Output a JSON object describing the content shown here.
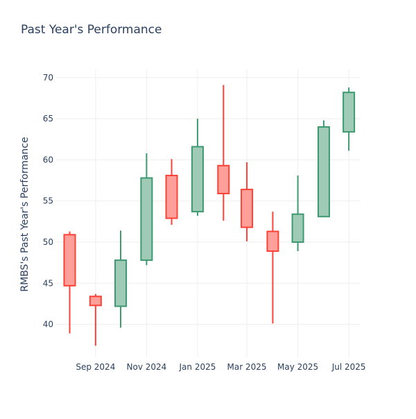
{
  "chart_data": {
    "type": "candlestick",
    "title": "Past Year's Performance",
    "xlabel": "",
    "ylabel": "RMBS's Past Year's Performance",
    "ylim": [
      36,
      71
    ],
    "yticks": [
      40,
      45,
      50,
      55,
      60,
      65,
      70
    ],
    "xlim": [
      "2024-07-15",
      "2025-07-15"
    ],
    "xticks": [
      {
        "date": "2024-09-01",
        "label": "Sep 2024"
      },
      {
        "date": "2024-11-01",
        "label": "Nov 2024"
      },
      {
        "date": "2025-01-01",
        "label": "Jan 2025"
      },
      {
        "date": "2025-03-01",
        "label": "Mar 2025"
      },
      {
        "date": "2025-05-01",
        "label": "May 2025"
      },
      {
        "date": "2025-07-01",
        "label": "Jul 2025"
      }
    ],
    "grid": true,
    "legend": "none",
    "colors": {
      "increasing_line": "#3d9970",
      "increasing_fill": "#9ecab6",
      "decreasing_line": "#ff4136",
      "decreasing_fill": "#ff9f9a",
      "grid": "#eeeeee",
      "text": "#2a3f5f"
    },
    "candles": [
      {
        "date": "2024-08-01",
        "open": 50.9,
        "high": 51.3,
        "low": 38.9,
        "close": 44.7
      },
      {
        "date": "2024-09-01",
        "open": 43.4,
        "high": 43.7,
        "low": 37.4,
        "close": 42.3
      },
      {
        "date": "2024-10-01",
        "open": 42.2,
        "high": 51.4,
        "low": 39.6,
        "close": 47.8
      },
      {
        "date": "2024-11-01",
        "open": 47.8,
        "high": 60.8,
        "low": 47.2,
        "close": 57.8
      },
      {
        "date": "2024-12-01",
        "open": 58.1,
        "high": 60.1,
        "low": 52.1,
        "close": 52.9
      },
      {
        "date": "2025-01-01",
        "open": 53.7,
        "high": 65.0,
        "low": 53.2,
        "close": 61.6
      },
      {
        "date": "2025-02-01",
        "open": 59.3,
        "high": 69.1,
        "low": 52.6,
        "close": 55.9
      },
      {
        "date": "2025-03-01",
        "open": 56.4,
        "high": 59.7,
        "low": 50.1,
        "close": 51.8
      },
      {
        "date": "2025-04-01",
        "open": 51.3,
        "high": 53.7,
        "low": 40.1,
        "close": 48.9
      },
      {
        "date": "2025-05-01",
        "open": 50.0,
        "high": 58.1,
        "low": 48.9,
        "close": 53.4
      },
      {
        "date": "2025-06-01",
        "open": 53.1,
        "high": 64.8,
        "low": 53.1,
        "close": 64.0
      },
      {
        "date": "2025-07-01",
        "open": 63.4,
        "high": 68.8,
        "low": 61.1,
        "close": 68.2
      }
    ]
  }
}
